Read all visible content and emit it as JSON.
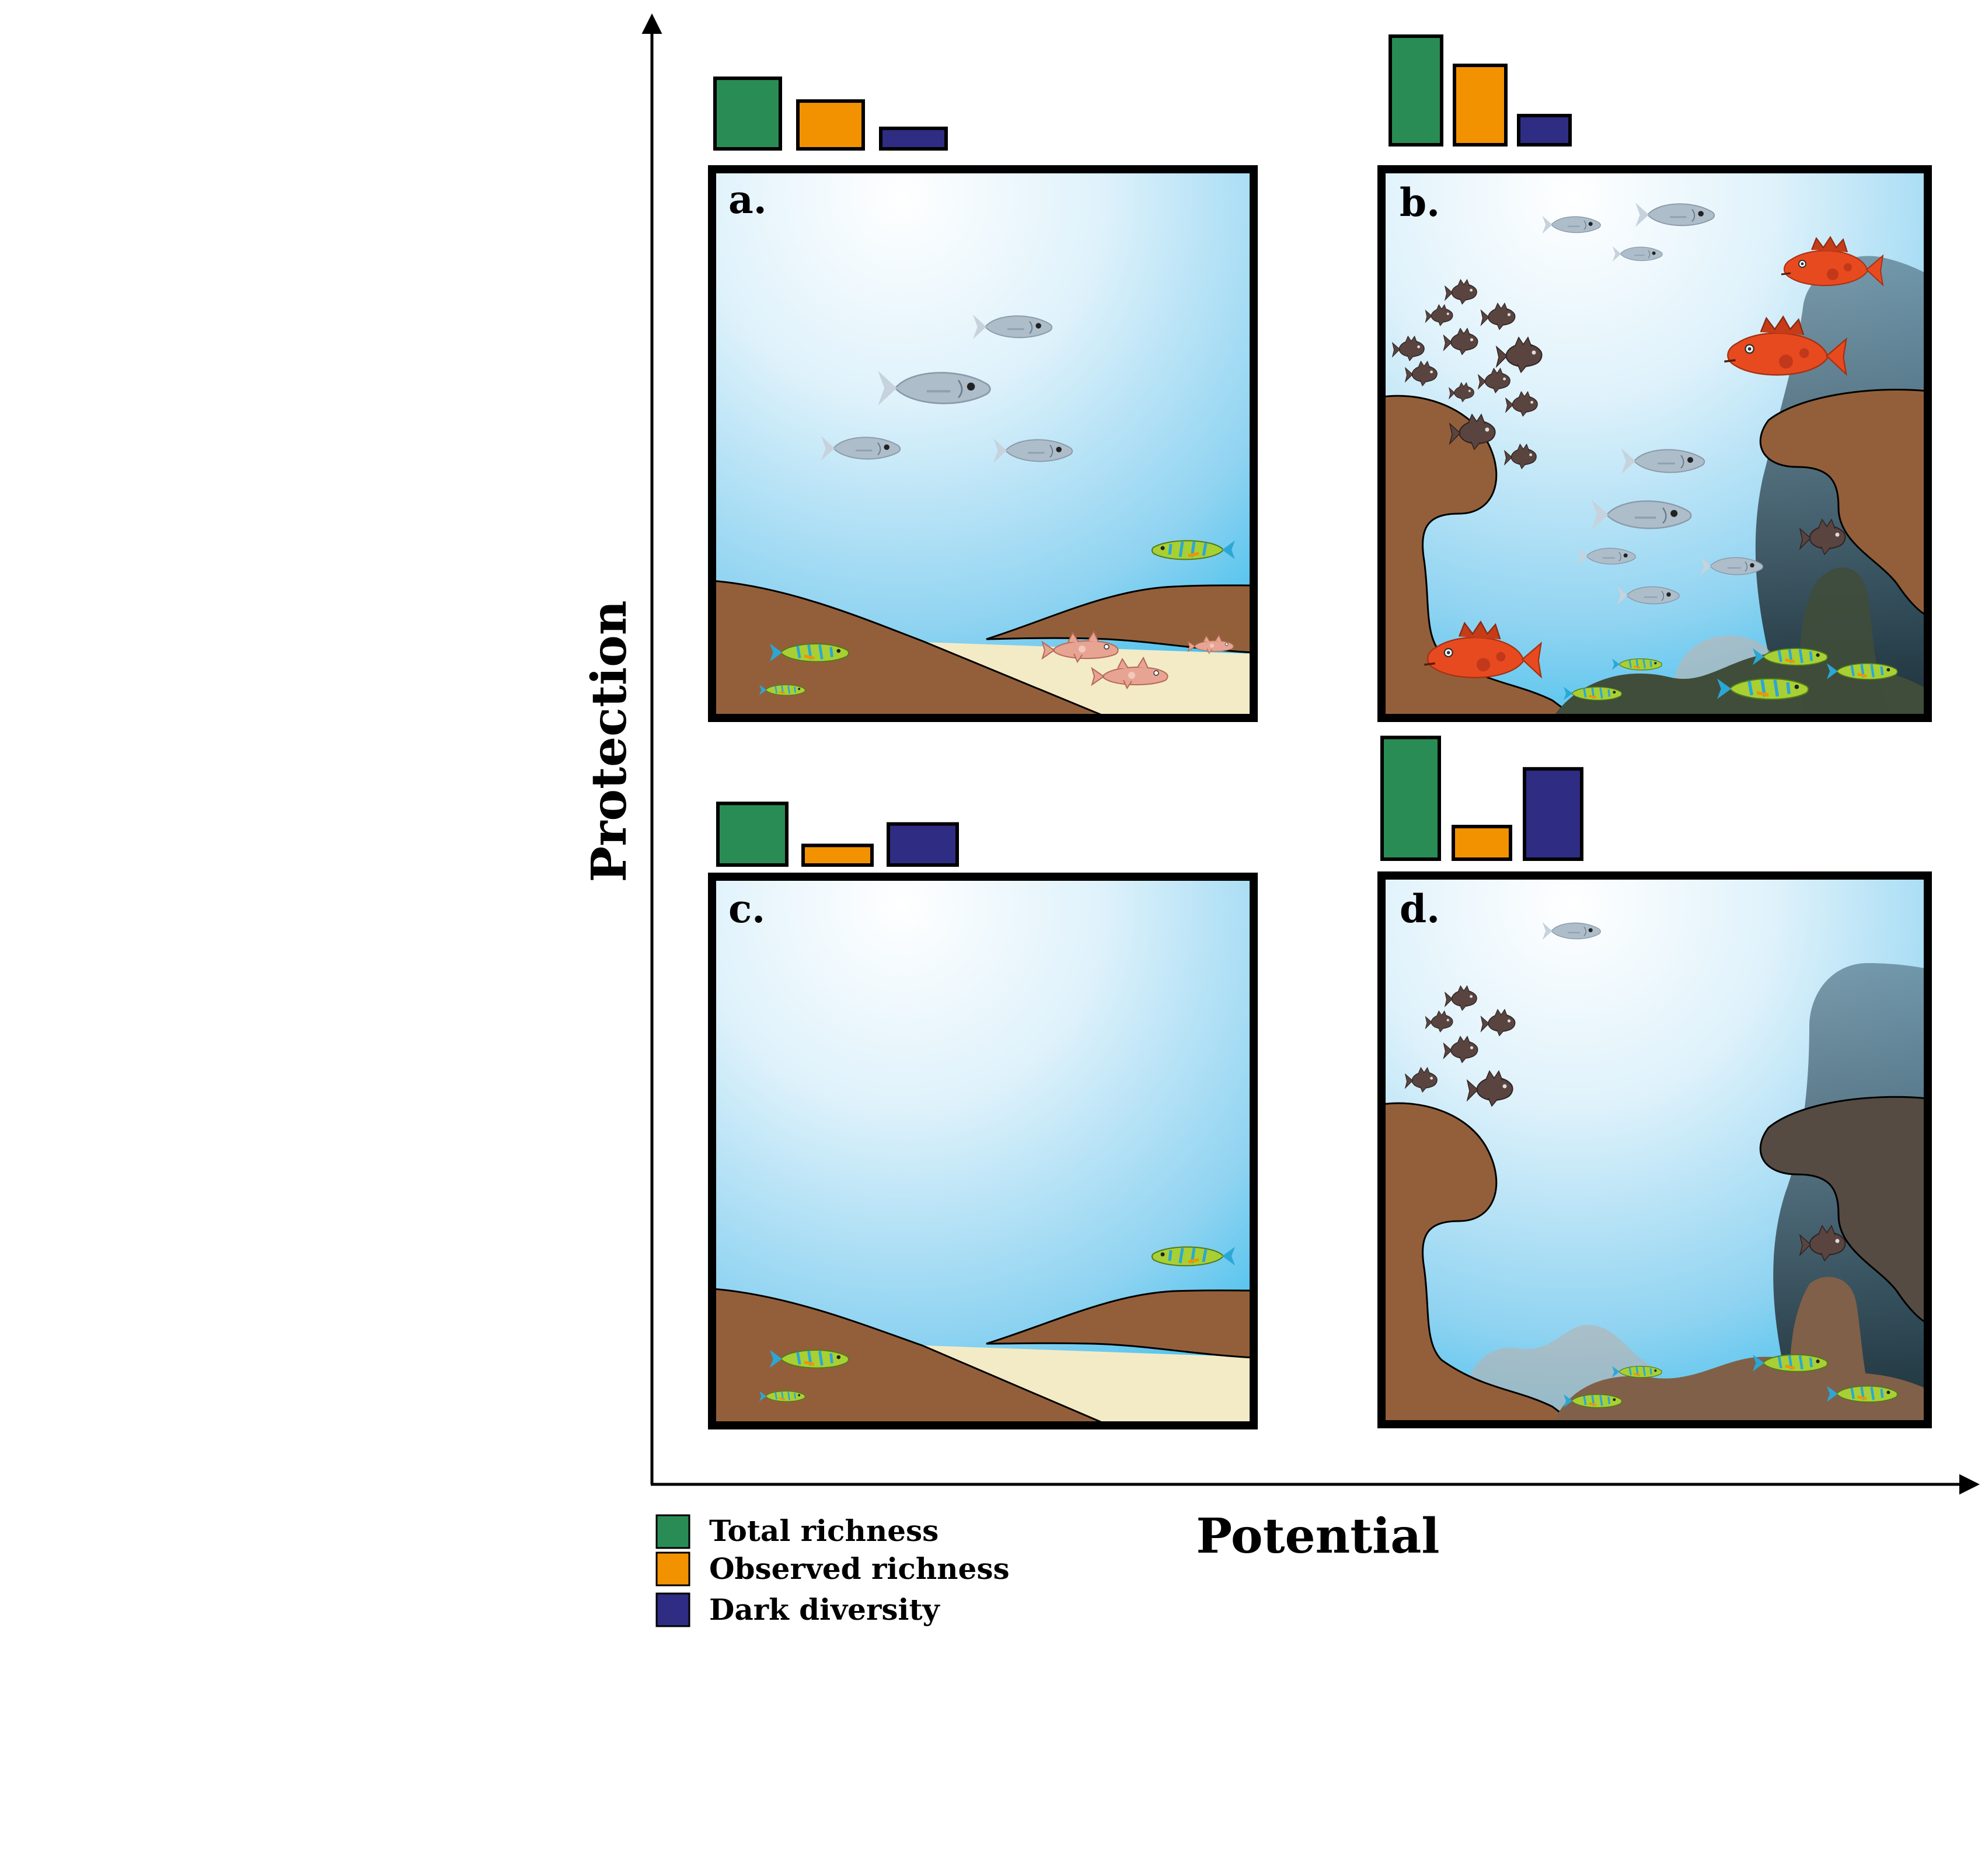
{
  "axes": {
    "y_label": "Protection",
    "x_label": "Potential"
  },
  "legend": {
    "items": [
      {
        "label": "Total richness",
        "color": "#2a8c55"
      },
      {
        "label": "Observed richness",
        "color": "#f39200"
      },
      {
        "label": "Dark diversity",
        "color": "#2e2d83"
      }
    ]
  },
  "colors": {
    "water_top": "#ffffff",
    "water_edge": "#3bbdec",
    "rock": "#935f3a",
    "sand": "#f3ebc6",
    "fish_silver": "#aebdca",
    "fish_red": "#e84a1f",
    "fish_dark": "#5a4440",
    "fish_green": "#a8d034",
    "algae": "#3f4d3a"
  },
  "panels": [
    {
      "id": "a",
      "label": "a.",
      "scene": "sand-low",
      "bars": {
        "total": 0.62,
        "observed": 0.42,
        "dark": 0.18
      }
    },
    {
      "id": "b",
      "label": "b.",
      "scene": "reef-high",
      "bars": {
        "total": 0.93,
        "observed": 0.68,
        "dark": 0.25
      }
    },
    {
      "id": "c",
      "label": "c.",
      "scene": "sand-low-empty",
      "bars": {
        "total": 0.66,
        "observed": 0.21,
        "dark": 0.44
      }
    },
    {
      "id": "d",
      "label": "d.",
      "scene": "reef-degraded",
      "bars": {
        "total": 0.97,
        "observed": 0.26,
        "dark": 0.72
      }
    }
  ]
}
